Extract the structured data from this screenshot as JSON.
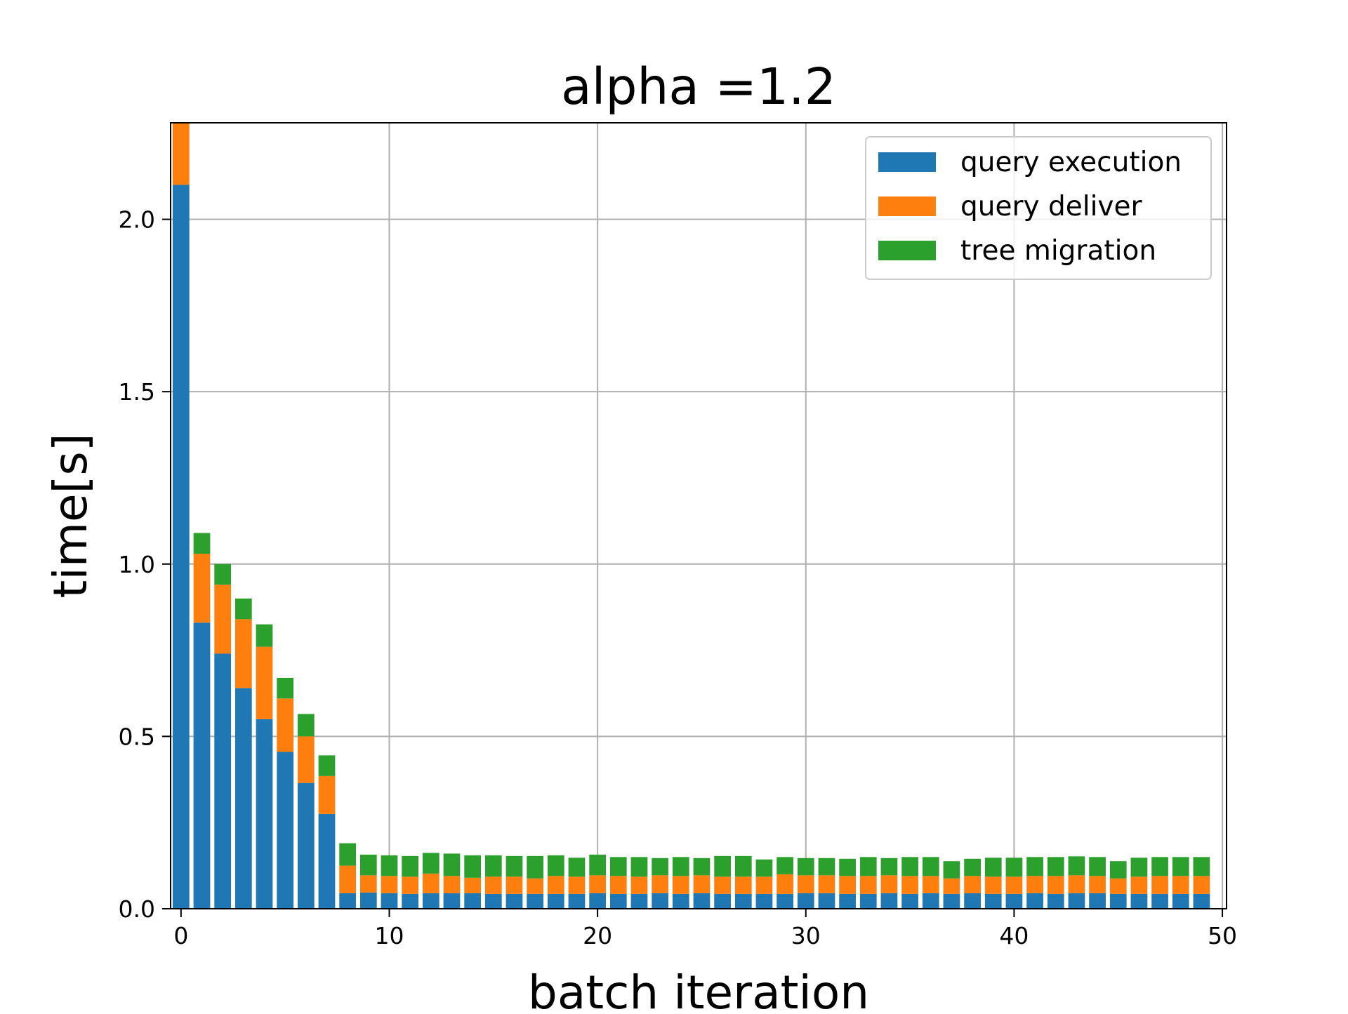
{
  "chart_data": {
    "type": "bar",
    "stacked": true,
    "title": "alpha =1.2",
    "xlabel": "batch iteration",
    "ylabel": "time[s]",
    "xlim": [
      -0.5,
      50.2
    ],
    "ylim": [
      0,
      2.28
    ],
    "xticks": [
      0,
      10,
      20,
      30,
      40,
      50
    ],
    "xtick_labels": [
      "0",
      "10",
      "20",
      "30",
      "40",
      "50"
    ],
    "yticks": [
      0.0,
      0.5,
      1.0,
      1.5,
      2.0
    ],
    "ytick_labels": [
      "0.0",
      "0.5",
      "1.0",
      "1.5",
      "2.0"
    ],
    "grid": true,
    "legend_position": "top-right",
    "x": [
      0,
      1,
      2,
      3,
      4,
      5,
      6,
      7,
      8,
      9,
      10,
      11,
      12,
      13,
      14,
      15,
      16,
      17,
      18,
      19,
      20,
      21,
      22,
      23,
      24,
      25,
      26,
      27,
      28,
      29,
      30,
      31,
      32,
      33,
      34,
      35,
      36,
      37,
      38,
      39,
      40,
      41,
      42,
      43,
      44,
      45,
      46,
      47,
      48,
      49
    ],
    "series": [
      {
        "name": "query execution",
        "color": "#1f77b4",
        "values": [
          2.1,
          0.83,
          0.74,
          0.64,
          0.55,
          0.455,
          0.365,
          0.275,
          0.045,
          0.047,
          0.045,
          0.043,
          0.045,
          0.045,
          0.045,
          0.043,
          0.043,
          0.043,
          0.043,
          0.043,
          0.045,
          0.043,
          0.043,
          0.045,
          0.043,
          0.045,
          0.043,
          0.043,
          0.043,
          0.043,
          0.045,
          0.045,
          0.043,
          0.043,
          0.045,
          0.043,
          0.045,
          0.043,
          0.045,
          0.043,
          0.043,
          0.045,
          0.043,
          0.045,
          0.045,
          0.043,
          0.043,
          0.043,
          0.043,
          0.043
        ]
      },
      {
        "name": "query deliver",
        "color": "#ff7f0e",
        "values": [
          0.19,
          0.2,
          0.2,
          0.2,
          0.21,
          0.155,
          0.135,
          0.11,
          0.08,
          0.05,
          0.05,
          0.05,
          0.057,
          0.05,
          0.045,
          0.05,
          0.05,
          0.045,
          0.052,
          0.05,
          0.052,
          0.052,
          0.05,
          0.052,
          0.052,
          0.052,
          0.05,
          0.05,
          0.05,
          0.057,
          0.052,
          0.052,
          0.052,
          0.052,
          0.052,
          0.052,
          0.05,
          0.045,
          0.05,
          0.05,
          0.05,
          0.05,
          0.052,
          0.052,
          0.05,
          0.045,
          0.05,
          0.052,
          0.052,
          0.052
        ]
      },
      {
        "name": "tree migration",
        "color": "#2ca02c",
        "values": [
          0.05,
          0.06,
          0.06,
          0.06,
          0.065,
          0.06,
          0.065,
          0.06,
          0.065,
          0.06,
          0.06,
          0.06,
          0.06,
          0.065,
          0.065,
          0.062,
          0.06,
          0.065,
          0.06,
          0.055,
          0.06,
          0.055,
          0.057,
          0.05,
          0.055,
          0.05,
          0.06,
          0.06,
          0.05,
          0.05,
          0.05,
          0.05,
          0.05,
          0.055,
          0.05,
          0.055,
          0.055,
          0.05,
          0.05,
          0.055,
          0.055,
          0.055,
          0.055,
          0.055,
          0.055,
          0.05,
          0.055,
          0.055,
          0.055,
          0.055
        ]
      }
    ]
  }
}
